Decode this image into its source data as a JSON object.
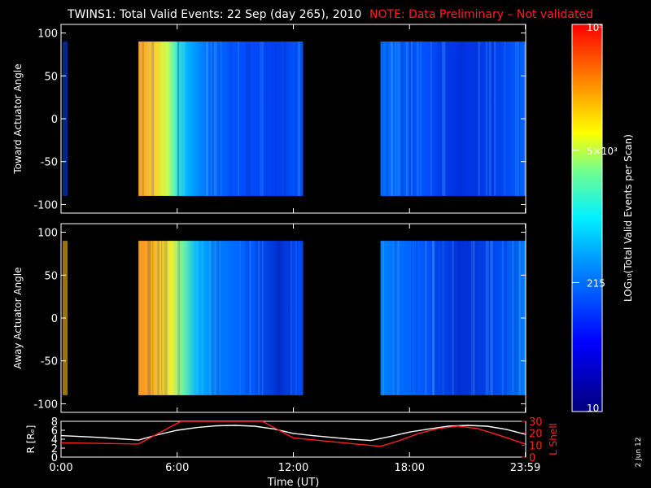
{
  "header": {
    "title": "TWINS1: Total Valid Events: 22 Sep (day 265), 2010",
    "note": "NOTE: Data Preliminary – Not validated",
    "note_color": "#ff2020"
  },
  "side_date": "2 Jun 12",
  "chart_data": [
    {
      "type": "heatmap",
      "id": "toward",
      "ylabel": "Toward Actuator Angle",
      "ylim": [
        -110,
        110
      ],
      "yticks": [
        100,
        50,
        0,
        -50,
        -100
      ],
      "xlim": [
        0,
        24
      ],
      "data_blocks": [
        [
          4.0,
          12.5
        ],
        [
          16.5,
          23.98
        ]
      ],
      "data_extent_y": [
        -90,
        90
      ],
      "description_cells": [
        {
          "x": [
            4.0,
            5.5
          ],
          "level": "yellow-orange"
        },
        {
          "x": [
            5.5,
            7.5
          ],
          "level": "cyan-to-blue"
        },
        {
          "x": [
            7.5,
            12.5
          ],
          "level": "blue"
        },
        {
          "x": [
            16.5,
            23.98
          ],
          "level": "blue"
        }
      ]
    },
    {
      "type": "heatmap",
      "id": "away",
      "ylabel": "Away Actuator Angle",
      "ylim": [
        -110,
        110
      ],
      "yticks": [
        100,
        50,
        0,
        -50,
        -100
      ],
      "xlim": [
        0,
        24
      ],
      "data_blocks": [
        [
          4.0,
          12.5
        ],
        [
          16.5,
          23.98
        ]
      ],
      "data_extent_y": [
        -90,
        90
      ]
    },
    {
      "type": "line",
      "id": "orbit",
      "xlabel": "Time (UT)",
      "xticks": [
        {
          "value": 0,
          "label": "0:00"
        },
        {
          "value": 6,
          "label": "6:00"
        },
        {
          "value": 12,
          "label": "12:00"
        },
        {
          "value": 18,
          "label": "18:00"
        },
        {
          "value": 23.98,
          "label": "23:59"
        }
      ],
      "left_axis": {
        "label": "R [Rₑ]",
        "ylim": [
          0,
          8
        ],
        "ticks": [
          0,
          2,
          4,
          6,
          8
        ],
        "color": "#ffffff"
      },
      "right_axis": {
        "label": "L Shell",
        "ylim": [
          0,
          30
        ],
        "ticks": [
          0,
          10,
          20,
          30
        ],
        "color": "#ff2020"
      },
      "series": [
        {
          "axis": "left",
          "color": "#ffffff",
          "x": [
            0,
            1,
            2,
            3,
            4,
            5,
            6,
            7,
            8,
            9,
            10,
            11,
            12,
            13,
            14,
            15,
            16,
            17,
            18,
            19,
            20,
            21,
            22,
            23,
            23.98
          ],
          "y": [
            4.8,
            4.6,
            4.4,
            4.1,
            3.8,
            5.0,
            6.0,
            6.6,
            7.0,
            7.1,
            6.9,
            6.3,
            5.3,
            4.8,
            4.4,
            4.0,
            3.7,
            4.6,
            5.6,
            6.3,
            6.9,
            7.1,
            6.9,
            6.2,
            5.1
          ]
        },
        {
          "axis": "right",
          "color": "#ff2020",
          "x": [
            0,
            4.0,
            6.2,
            6.35,
            10.3,
            10.4,
            12.0,
            16.5,
            17.5,
            18.5,
            19.5,
            20.5,
            21.5,
            22.5,
            23.98
          ],
          "y": [
            12,
            11,
            30,
            30,
            30,
            30,
            16,
            9,
            14,
            20,
            24,
            26,
            24,
            19,
            11
          ]
        }
      ]
    }
  ],
  "colorbar": {
    "label": "LOG₁₀(Total Valid Events per Scan)",
    "tick_labels": [
      "10⁵",
      "5×10³",
      "215",
      "10"
    ],
    "tick_values": [
      100000,
      5000,
      215,
      10
    ],
    "scale": "log",
    "range": [
      10,
      100000
    ],
    "colormap": [
      "#000080",
      "#0000ff",
      "#00b0ff",
      "#00ffff",
      "#80ff80",
      "#ffff00",
      "#ff8000",
      "#ff0000"
    ]
  }
}
